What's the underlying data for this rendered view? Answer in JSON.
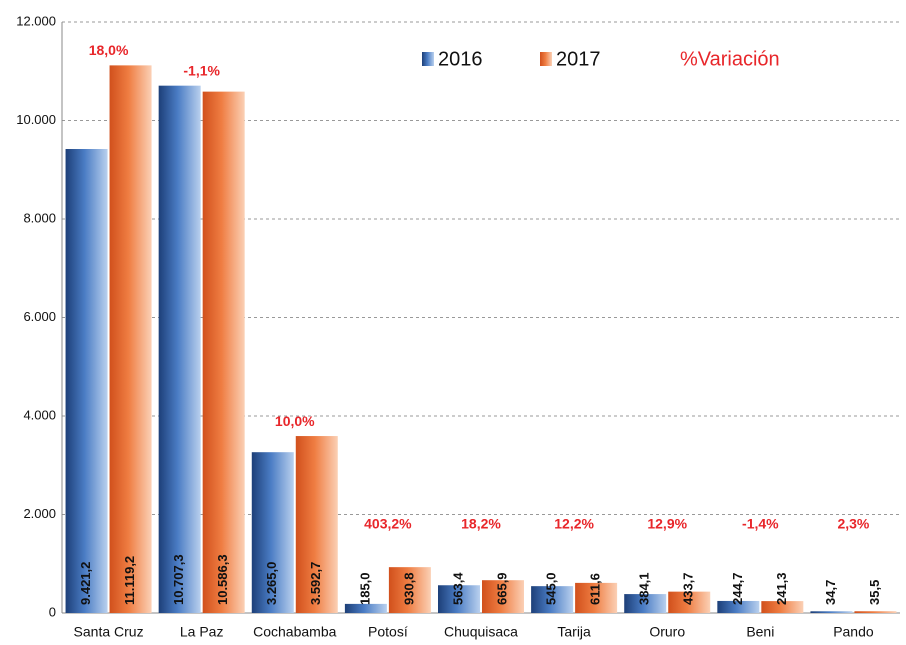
{
  "chart_data": {
    "type": "bar",
    "categories": [
      "Santa Cruz",
      "La Paz",
      "Cochabamba",
      "Potosí",
      "Chuquisaca",
      "Tarija",
      "Oruro",
      "Beni",
      "Pando"
    ],
    "series": [
      {
        "name": "2016",
        "color": "#2e5fa3",
        "values": [
          9421.2,
          10707.3,
          3265.0,
          185.0,
          563.4,
          545.0,
          384.1,
          244.7,
          34.7
        ],
        "value_labels": [
          "9.421,2",
          "10.707,3",
          "3.265,0",
          "185,0",
          "563,4",
          "545,0",
          "384,1",
          "244,7",
          "34,7"
        ]
      },
      {
        "name": "2017",
        "color": "#e8692f",
        "values": [
          11119.2,
          10586.3,
          3592.7,
          930.8,
          665.9,
          611.6,
          433.7,
          241.3,
          35.5
        ],
        "value_labels": [
          "11.119,2",
          "10.586,3",
          "3.592,7",
          "930,8",
          "665,9",
          "611,6",
          "433,7",
          "241,3",
          "35,5"
        ]
      }
    ],
    "variation": {
      "name": "%Variación",
      "color": "#e8262a",
      "values": [
        18.0,
        -1.1,
        10.0,
        403.2,
        18.2,
        12.2,
        12.9,
        -1.4,
        2.3
      ],
      "value_labels": [
        "18,0%",
        "-1,1%",
        "10,0%",
        "403,2%",
        "18,2%",
        "12,2%",
        "12,9%",
        "-1,4%",
        "2,3%"
      ]
    },
    "ylim": [
      0,
      12000
    ],
    "yticks": [
      0,
      {
        "value": 2000,
        "label": "2.000"
      },
      {
        "value": 4000,
        "label": "4.000"
      },
      {
        "value": 6000,
        "label": "6.000"
      },
      {
        "value": 8000,
        "label": "8.000"
      },
      {
        "value": 10000,
        "label": "10.000"
      },
      {
        "value": 12000,
        "label": "12.000"
      }
    ],
    "grid": true
  }
}
